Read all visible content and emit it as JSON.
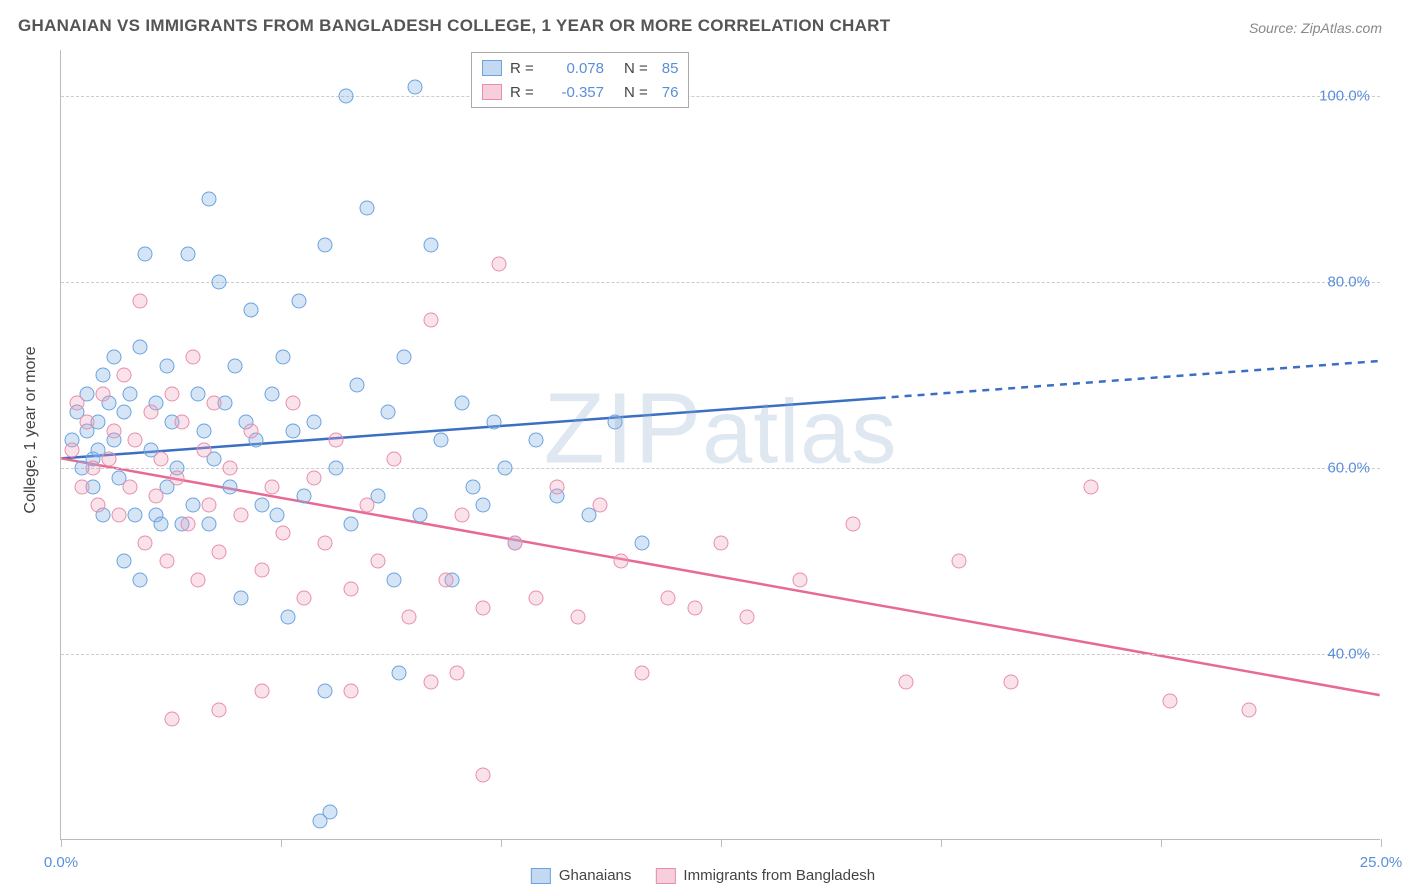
{
  "chart": {
    "type": "scatter",
    "title": "GHANAIAN VS IMMIGRANTS FROM BANGLADESH COLLEGE, 1 YEAR OR MORE CORRELATION CHART",
    "source": "Source: ZipAtlas.com",
    "watermark": "ZIPatlas",
    "y_axis_title": "College, 1 year or more",
    "background_color": "#ffffff",
    "grid_color": "#cccccc",
    "axis_color": "#bbbbbb",
    "label_color": "#5a8fd8",
    "title_color": "#555555",
    "title_fontsize": 17,
    "label_fontsize": 15,
    "xlim": [
      0,
      25
    ],
    "ylim": [
      20,
      105
    ],
    "x_ticks": [
      0,
      4.17,
      8.33,
      12.5,
      16.67,
      20.83,
      25
    ],
    "x_tick_labels": [
      "0.0%",
      "",
      "",
      "",
      "",
      "",
      "25.0%"
    ],
    "y_ticks": [
      40,
      60,
      80,
      100
    ],
    "y_tick_labels": [
      "40.0%",
      "60.0%",
      "80.0%",
      "100.0%"
    ],
    "marker_size": 15,
    "series": [
      {
        "name": "Ghanaians",
        "color_fill": "rgba(135,180,230,0.35)",
        "color_stroke": "#6aa3df",
        "r": 0.078,
        "n": 85,
        "trend": {
          "x1": 0,
          "y1": 61,
          "x2": 15.5,
          "y2": 67.5,
          "x2_dash": 25,
          "y2_dash": 71.5,
          "stroke": "#3a6fc4",
          "width": 2.5
        },
        "points": [
          [
            0.2,
            63
          ],
          [
            0.3,
            66
          ],
          [
            0.4,
            60
          ],
          [
            0.5,
            64
          ],
          [
            0.5,
            68
          ],
          [
            0.6,
            61
          ],
          [
            0.6,
            58
          ],
          [
            0.7,
            65
          ],
          [
            0.7,
            62
          ],
          [
            0.8,
            70
          ],
          [
            0.8,
            55
          ],
          [
            0.9,
            67
          ],
          [
            1.0,
            63
          ],
          [
            1.0,
            72
          ],
          [
            1.1,
            59
          ],
          [
            1.2,
            66
          ],
          [
            1.2,
            50
          ],
          [
            1.3,
            68
          ],
          [
            1.4,
            55
          ],
          [
            1.5,
            73
          ],
          [
            1.5,
            48
          ],
          [
            1.6,
            83
          ],
          [
            1.7,
            62
          ],
          [
            1.8,
            55
          ],
          [
            1.8,
            67
          ],
          [
            1.9,
            54
          ],
          [
            2.0,
            71
          ],
          [
            2.0,
            58
          ],
          [
            2.1,
            65
          ],
          [
            2.2,
            60
          ],
          [
            2.3,
            54
          ],
          [
            2.4,
            83
          ],
          [
            2.5,
            56
          ],
          [
            2.6,
            68
          ],
          [
            2.7,
            64
          ],
          [
            2.8,
            89
          ],
          [
            2.8,
            54
          ],
          [
            2.9,
            61
          ],
          [
            3.0,
            80
          ],
          [
            3.1,
            67
          ],
          [
            3.2,
            58
          ],
          [
            3.3,
            71
          ],
          [
            3.4,
            46
          ],
          [
            3.5,
            65
          ],
          [
            3.6,
            77
          ],
          [
            3.7,
            63
          ],
          [
            3.8,
            56
          ],
          [
            4.0,
            68
          ],
          [
            4.1,
            55
          ],
          [
            4.2,
            72
          ],
          [
            4.3,
            44
          ],
          [
            4.4,
            64
          ],
          [
            4.5,
            78
          ],
          [
            4.6,
            57
          ],
          [
            4.8,
            65
          ],
          [
            5.0,
            84
          ],
          [
            5.2,
            60
          ],
          [
            5.4,
            100
          ],
          [
            5.5,
            54
          ],
          [
            5.6,
            69
          ],
          [
            5.8,
            88
          ],
          [
            6.0,
            57
          ],
          [
            6.2,
            66
          ],
          [
            6.4,
            38
          ],
          [
            6.5,
            72
          ],
          [
            6.7,
            101
          ],
          [
            6.8,
            55
          ],
          [
            7.0,
            84
          ],
          [
            7.2,
            63
          ],
          [
            7.4,
            48
          ],
          [
            7.6,
            67
          ],
          [
            7.8,
            58
          ],
          [
            8.0,
            56
          ],
          [
            8.2,
            65
          ],
          [
            8.4,
            60
          ],
          [
            8.6,
            52
          ],
          [
            9.0,
            63
          ],
          [
            9.4,
            57
          ],
          [
            10.0,
            55
          ],
          [
            10.5,
            65
          ],
          [
            11.0,
            52
          ],
          [
            4.9,
            22
          ],
          [
            5.1,
            23
          ],
          [
            5.0,
            36
          ],
          [
            6.3,
            48
          ]
        ]
      },
      {
        "name": "Immigrants from Bangladesh",
        "color_fill": "rgba(240,160,185,0.30)",
        "color_stroke": "#e88fab",
        "r": -0.357,
        "n": 76,
        "trend": {
          "x1": 0,
          "y1": 61,
          "x2": 25,
          "y2": 35.5,
          "stroke": "#e86a92",
          "width": 2.5
        },
        "points": [
          [
            0.2,
            62
          ],
          [
            0.3,
            67
          ],
          [
            0.4,
            58
          ],
          [
            0.5,
            65
          ],
          [
            0.6,
            60
          ],
          [
            0.7,
            56
          ],
          [
            0.8,
            68
          ],
          [
            0.9,
            61
          ],
          [
            1.0,
            64
          ],
          [
            1.1,
            55
          ],
          [
            1.2,
            70
          ],
          [
            1.3,
            58
          ],
          [
            1.4,
            63
          ],
          [
            1.5,
            78
          ],
          [
            1.6,
            52
          ],
          [
            1.7,
            66
          ],
          [
            1.8,
            57
          ],
          [
            1.9,
            61
          ],
          [
            2.0,
            50
          ],
          [
            2.1,
            68
          ],
          [
            2.2,
            59
          ],
          [
            2.3,
            65
          ],
          [
            2.4,
            54
          ],
          [
            2.5,
            72
          ],
          [
            2.6,
            48
          ],
          [
            2.7,
            62
          ],
          [
            2.8,
            56
          ],
          [
            2.9,
            67
          ],
          [
            3.0,
            51
          ],
          [
            3.2,
            60
          ],
          [
            3.4,
            55
          ],
          [
            3.6,
            64
          ],
          [
            3.8,
            49
          ],
          [
            4.0,
            58
          ],
          [
            4.2,
            53
          ],
          [
            4.4,
            67
          ],
          [
            4.6,
            46
          ],
          [
            4.8,
            59
          ],
          [
            5.0,
            52
          ],
          [
            5.2,
            63
          ],
          [
            5.5,
            47
          ],
          [
            5.8,
            56
          ],
          [
            6.0,
            50
          ],
          [
            6.3,
            61
          ],
          [
            6.6,
            44
          ],
          [
            7.0,
            37
          ],
          [
            7.0,
            76
          ],
          [
            7.3,
            48
          ],
          [
            7.6,
            55
          ],
          [
            8.0,
            45
          ],
          [
            8.3,
            82
          ],
          [
            8.6,
            52
          ],
          [
            9.0,
            46
          ],
          [
            9.4,
            58
          ],
          [
            9.8,
            44
          ],
          [
            10.2,
            56
          ],
          [
            10.6,
            50
          ],
          [
            11.0,
            38
          ],
          [
            11.5,
            46
          ],
          [
            12.0,
            45
          ],
          [
            12.5,
            52
          ],
          [
            13.0,
            44
          ],
          [
            14.0,
            48
          ],
          [
            15.0,
            54
          ],
          [
            16.0,
            37
          ],
          [
            17.0,
            50
          ],
          [
            18.0,
            37
          ],
          [
            19.5,
            58
          ],
          [
            21.0,
            35
          ],
          [
            22.5,
            34
          ],
          [
            2.1,
            33
          ],
          [
            3.0,
            34
          ],
          [
            3.8,
            36
          ],
          [
            5.5,
            36
          ],
          [
            8.0,
            27
          ],
          [
            7.5,
            38
          ]
        ]
      }
    ],
    "legend_bottom": [
      {
        "swatch": "blue",
        "label": "Ghanaians"
      },
      {
        "swatch": "pink",
        "label": "Immigrants from Bangladesh"
      }
    ]
  }
}
